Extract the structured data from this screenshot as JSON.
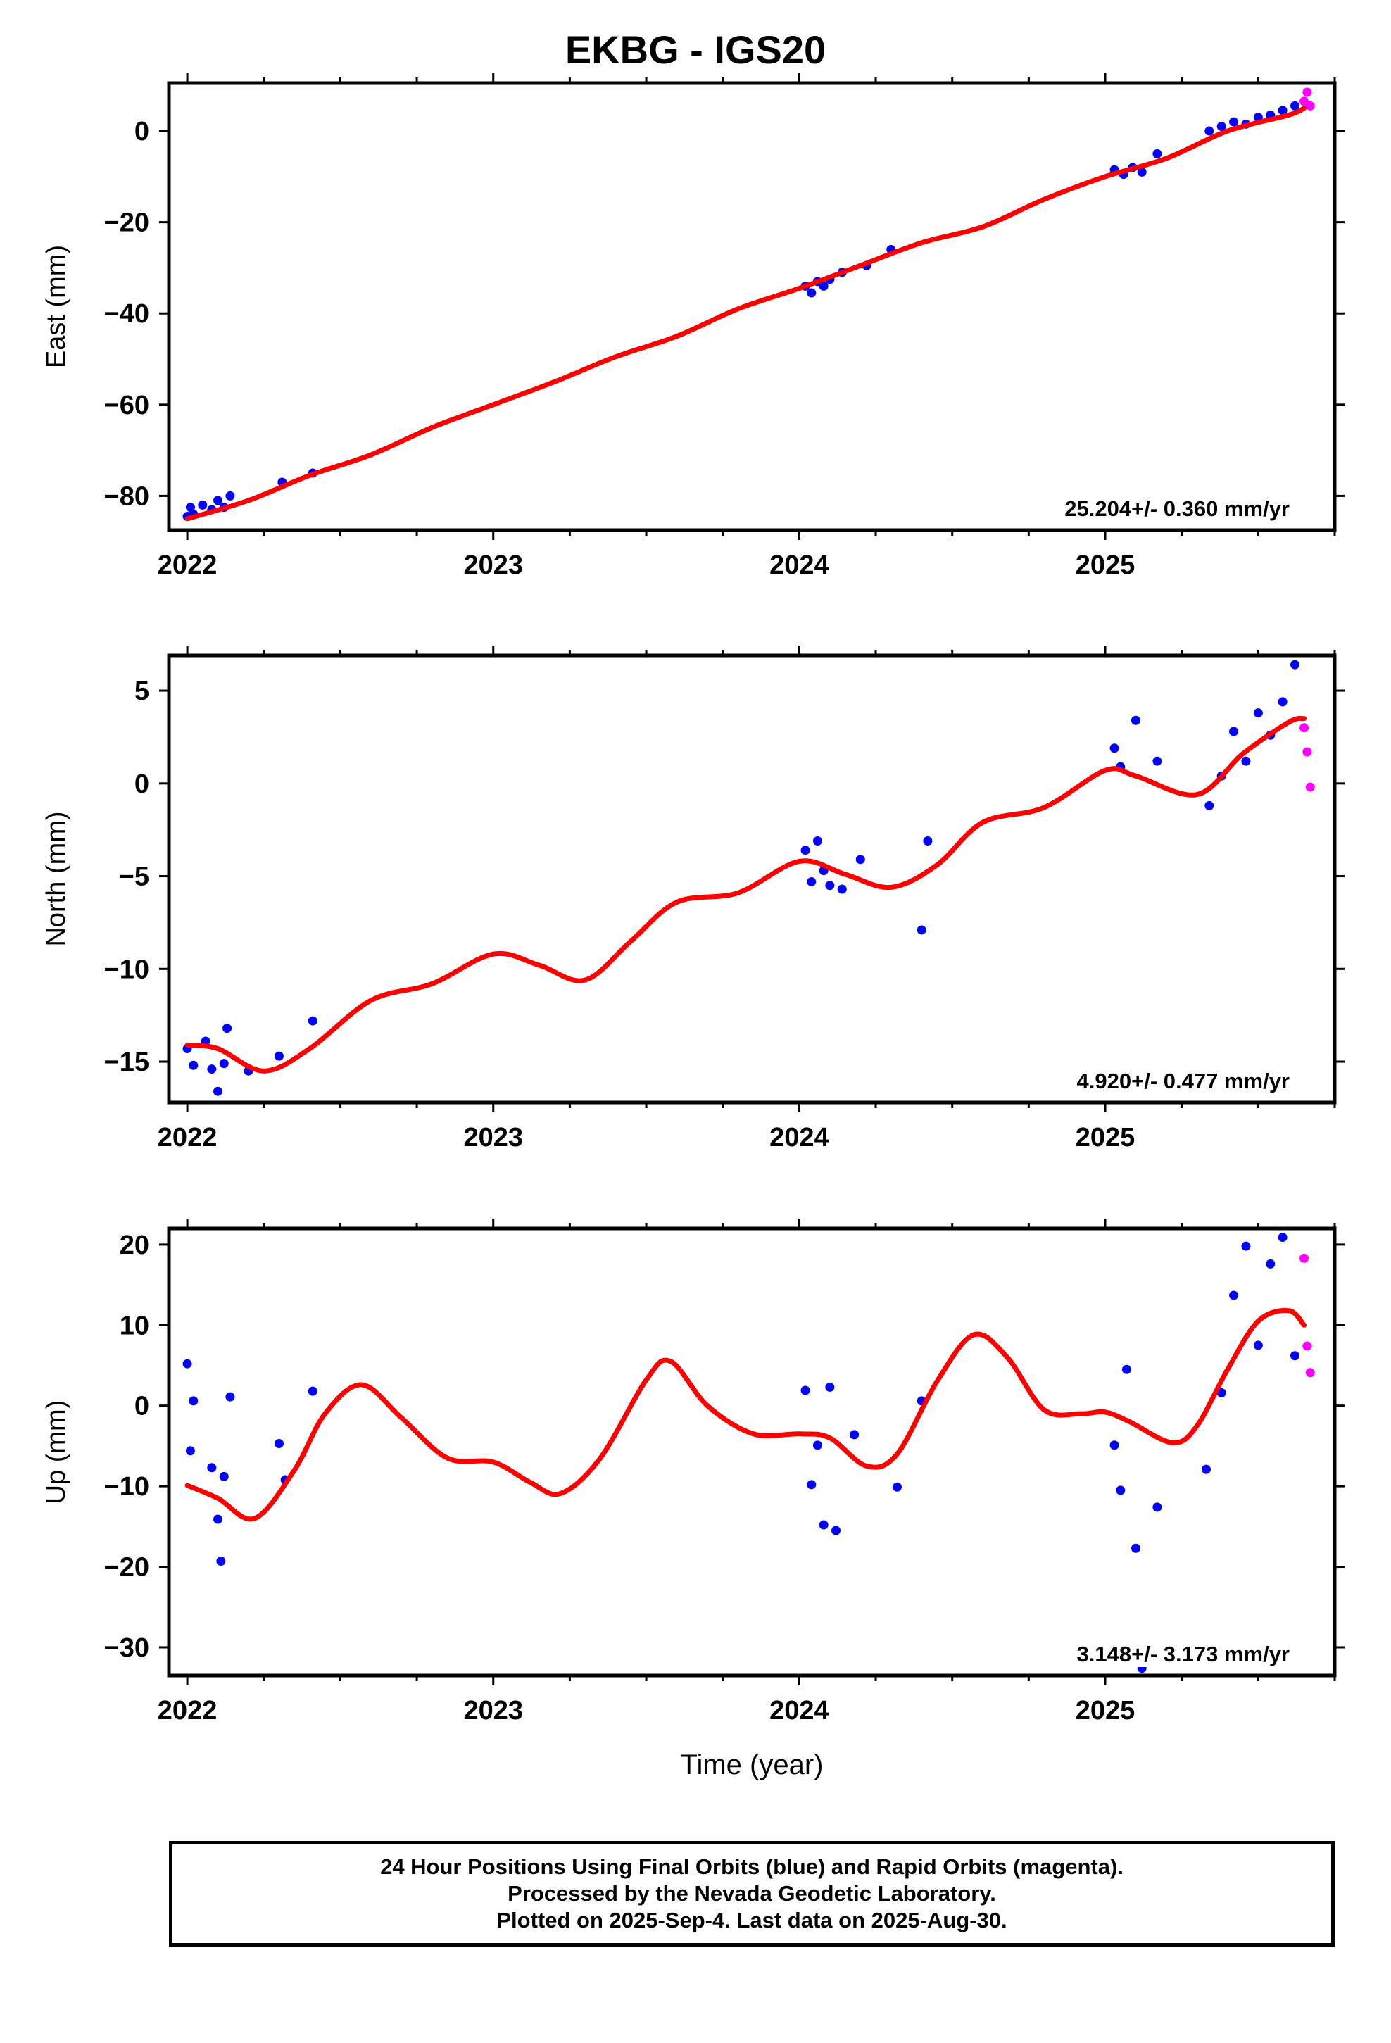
{
  "chart_data": [
    {
      "type": "scatter",
      "panel": "east",
      "title": "EKBG - IGS20",
      "ylabel": "East (mm)",
      "xlim": [
        2021.94,
        2025.75
      ],
      "ylim": [
        -87.5,
        10.5
      ],
      "yticks": [
        0,
        -20,
        -40,
        -60,
        -80
      ],
      "xticks": [
        2022,
        2023,
        2024,
        2025
      ],
      "velocity_label": "25.204+/- 0.360 mm/yr",
      "series": [
        {
          "name": "Final Orbits",
          "color": "#0000ff",
          "x": [
            2022.0,
            2022.01,
            2022.02,
            2022.05,
            2022.08,
            2022.1,
            2022.12,
            2022.14,
            2022.31,
            2022.41,
            2024.02,
            2024.04,
            2024.06,
            2024.08,
            2024.1,
            2024.14,
            2024.22,
            2024.3,
            2025.03,
            2025.06,
            2025.09,
            2025.12,
            2025.17,
            2025.34,
            2025.38,
            2025.42,
            2025.46,
            2025.5,
            2025.54,
            2025.58,
            2025.62
          ],
          "y": [
            -84.5,
            -82.5,
            -84,
            -82,
            -83,
            -81,
            -82.5,
            -80,
            -77,
            -75,
            -34,
            -35.5,
            -33,
            -34,
            -32.5,
            -31,
            -29.5,
            -26,
            -8.5,
            -9.5,
            -8,
            -9,
            -5,
            0,
            1,
            2,
            1.5,
            3,
            3.5,
            4.5,
            5.5
          ]
        },
        {
          "name": "Rapid Orbits",
          "color": "#ff00ff",
          "x": [
            2025.65,
            2025.66,
            2025.67
          ],
          "y": [
            6.5,
            8.5,
            5.5
          ]
        }
      ],
      "trend": {
        "color": "#ff0000",
        "x": [
          2022.0,
          2022.2,
          2022.4,
          2022.6,
          2022.8,
          2023.0,
          2023.2,
          2023.4,
          2023.6,
          2023.8,
          2024.0,
          2024.2,
          2024.4,
          2024.6,
          2024.8,
          2025.0,
          2025.2,
          2025.4,
          2025.6,
          2025.65
        ],
        "y": [
          -85,
          -81,
          -75.5,
          -71,
          -65,
          -60,
          -55,
          -49.5,
          -45,
          -39,
          -34.5,
          -29.5,
          -24.5,
          -21,
          -15,
          -10,
          -6,
          0,
          3.5,
          5
        ]
      }
    },
    {
      "type": "scatter",
      "panel": "north",
      "ylabel": "North (mm)",
      "xlim": [
        2021.94,
        2025.75
      ],
      "ylim": [
        -17.2,
        6.9
      ],
      "yticks": [
        5,
        0,
        -5,
        -10,
        -15
      ],
      "xticks": [
        2022,
        2023,
        2024,
        2025
      ],
      "velocity_label": "4.920+/- 0.477 mm/yr",
      "series": [
        {
          "name": "Final Orbits",
          "color": "#0000ff",
          "x": [
            2022.0,
            2022.02,
            2022.06,
            2022.08,
            2022.1,
            2022.12,
            2022.13,
            2022.2,
            2022.3,
            2022.41,
            2024.02,
            2024.04,
            2024.06,
            2024.08,
            2024.1,
            2024.14,
            2024.2,
            2024.4,
            2024.42,
            2025.03,
            2025.05,
            2025.1,
            2025.17,
            2025.34,
            2025.38,
            2025.42,
            2025.46,
            2025.5,
            2025.54,
            2025.58,
            2025.62
          ],
          "y": [
            -14.3,
            -15.2,
            -13.9,
            -15.4,
            -16.6,
            -15.1,
            -13.2,
            -15.5,
            -14.7,
            -12.8,
            -3.6,
            -5.3,
            -3.1,
            -4.7,
            -5.5,
            -5.7,
            -4.1,
            -7.9,
            -3.1,
            1.9,
            0.9,
            3.4,
            1.2,
            -1.2,
            0.4,
            2.8,
            1.2,
            3.8,
            2.6,
            4.4,
            6.4
          ]
        },
        {
          "name": "Rapid Orbits",
          "color": "#ff00ff",
          "x": [
            2025.65,
            2025.66,
            2025.67
          ],
          "y": [
            3.0,
            1.7,
            -0.2
          ]
        }
      ],
      "trend": {
        "color": "#ff0000",
        "x": [
          2022.0,
          2022.1,
          2022.25,
          2022.4,
          2022.6,
          2022.8,
          2023.0,
          2023.15,
          2023.3,
          2023.45,
          2023.6,
          2023.8,
          2024.0,
          2024.15,
          2024.3,
          2024.45,
          2024.6,
          2024.8,
          2025.0,
          2025.1,
          2025.3,
          2025.45,
          2025.6,
          2025.65
        ],
        "y": [
          -14.1,
          -14.3,
          -15.5,
          -14.3,
          -11.7,
          -10.8,
          -9.2,
          -9.8,
          -10.6,
          -8.5,
          -6.4,
          -5.9,
          -4.2,
          -4.9,
          -5.6,
          -4.4,
          -2.1,
          -1.3,
          0.7,
          0.4,
          -0.6,
          1.6,
          3.3,
          3.5
        ]
      }
    },
    {
      "type": "scatter",
      "panel": "up",
      "ylabel": "Up (mm)",
      "xlabel": "Time (year)",
      "xlim": [
        2021.94,
        2025.75
      ],
      "ylim": [
        -33.5,
        22
      ],
      "yticks": [
        20,
        10,
        0,
        -10,
        -20,
        -30
      ],
      "xticks": [
        2022,
        2023,
        2024,
        2025
      ],
      "velocity_label": "3.148+/- 3.173 mm/yr",
      "series": [
        {
          "name": "Final Orbits",
          "color": "#0000ff",
          "x": [
            2022.0,
            2022.01,
            2022.02,
            2022.08,
            2022.1,
            2022.11,
            2022.12,
            2022.14,
            2022.3,
            2022.32,
            2022.41,
            2024.02,
            2024.04,
            2024.06,
            2024.08,
            2024.1,
            2024.12,
            2024.18,
            2024.32,
            2024.4,
            2025.03,
            2025.05,
            2025.07,
            2025.1,
            2025.12,
            2025.17,
            2025.33,
            2025.38,
            2025.42,
            2025.46,
            2025.5,
            2025.54,
            2025.58,
            2025.62
          ],
          "y": [
            5.2,
            -5.6,
            0.6,
            -7.7,
            -14.1,
            -19.3,
            -8.8,
            1.1,
            -4.7,
            -9.2,
            1.8,
            1.9,
            -9.8,
            -4.9,
            -14.8,
            2.3,
            -15.5,
            -3.6,
            -10.1,
            0.6,
            -4.9,
            -10.5,
            4.5,
            -17.7,
            -32.6,
            -12.6,
            -7.9,
            1.6,
            13.7,
            19.8,
            7.5,
            17.6,
            20.9,
            6.2
          ]
        },
        {
          "name": "Rapid Orbits",
          "color": "#ff00ff",
          "x": [
            2025.65,
            2025.66,
            2025.67
          ],
          "y": [
            18.3,
            7.4,
            4.1
          ]
        }
      ],
      "trend": {
        "color": "#ff0000",
        "x": [
          2022.0,
          2022.1,
          2022.22,
          2022.35,
          2022.45,
          2022.57,
          2022.7,
          2022.85,
          2023.0,
          2023.12,
          2023.22,
          2023.35,
          2023.5,
          2023.58,
          2023.7,
          2023.85,
          2024.0,
          2024.1,
          2024.22,
          2024.32,
          2024.45,
          2024.57,
          2024.68,
          2024.8,
          2024.92,
          2025.0,
          2025.08,
          2025.22,
          2025.3,
          2025.4,
          2025.5,
          2025.6,
          2025.65
        ],
        "y": [
          -9.9,
          -11.5,
          -14,
          -8,
          -1,
          2.6,
          -1.5,
          -6.5,
          -7,
          -9.5,
          -10.9,
          -6.5,
          3.2,
          5.5,
          0,
          -3.5,
          -3.5,
          -4,
          -7.5,
          -6,
          3,
          8.8,
          6,
          -0.5,
          -1,
          -0.8,
          -2,
          -4.6,
          -2.5,
          4.5,
          10.5,
          11.8,
          10
        ]
      }
    }
  ],
  "caption": {
    "line1": "24 Hour Positions Using Final Orbits (blue) and Rapid Orbits (magenta).",
    "line2": "Processed by the Nevada Geodetic Laboratory.",
    "line3": "Plotted on 2025-Sep-4. Last data on 2025-Aug-30."
  }
}
